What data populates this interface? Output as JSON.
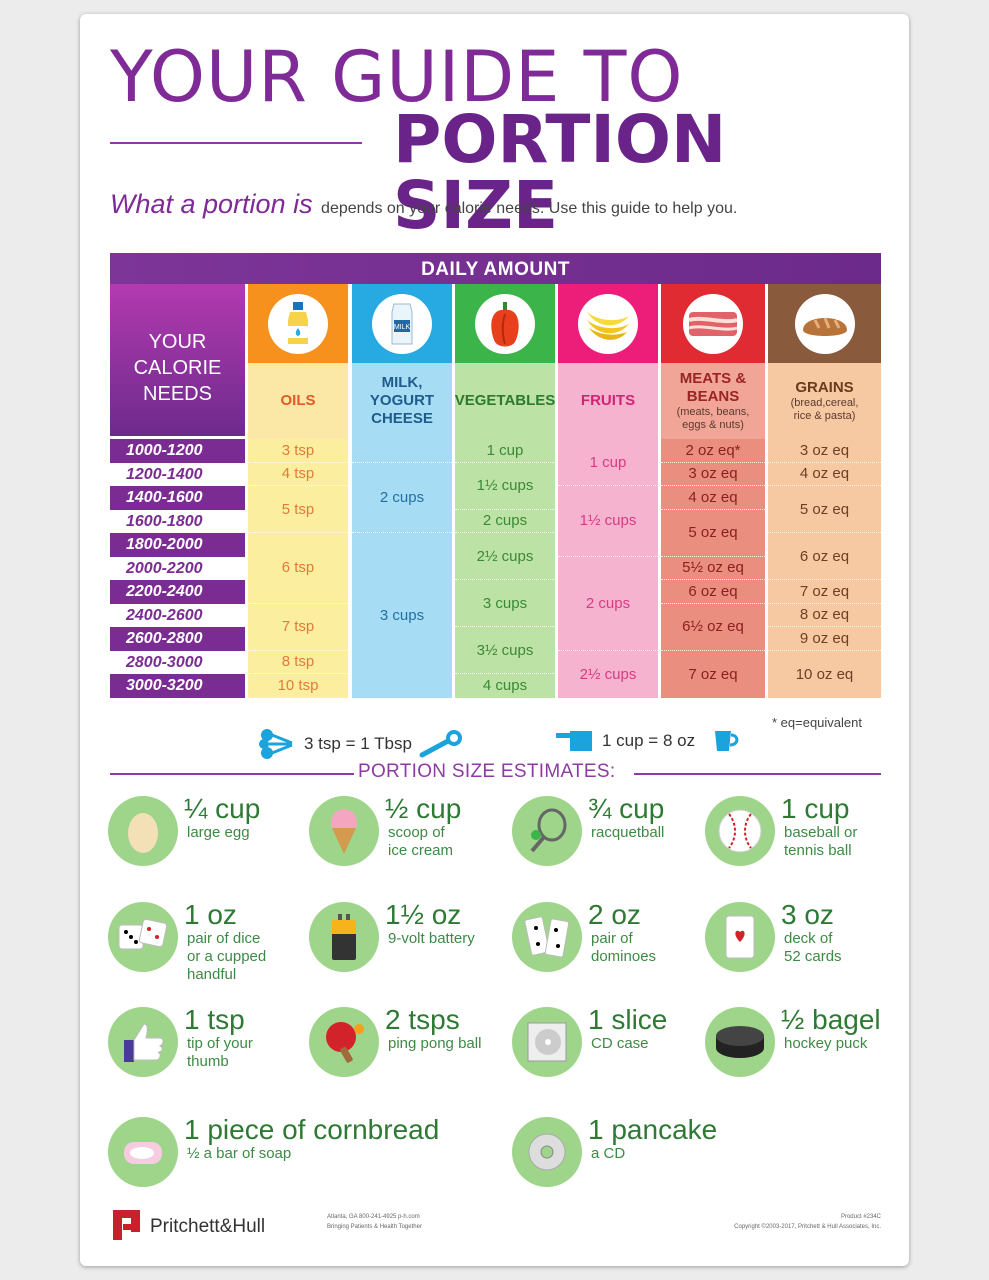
{
  "title": {
    "line1": "YOUR GUIDE TO",
    "line2": "PORTION SIZE"
  },
  "subtitle": {
    "lead": "What a portion is",
    "rest": "depends on your calorie needs. Use this guide to help you."
  },
  "table": {
    "banner": "DAILY AMOUNT",
    "needs_header": "YOUR\nCALORIE\nNEEDS",
    "ranges": [
      "1000-1200",
      "1200-1400",
      "1400-1600",
      "1600-1800",
      "1800-2000",
      "2000-2200",
      "2200-2400",
      "2400-2600",
      "2600-2800",
      "2800-3000",
      "3000-3200"
    ],
    "columns": [
      {
        "icon": "oil-bottle-icon",
        "header": "OILS",
        "sub": "",
        "icon_bg": "#f6911e",
        "header_bg": "#fbe7a6",
        "body_bg": "#fcee9f",
        "header_color": "#e25a27",
        "text_color": "#e47a3a",
        "cells": [
          {
            "t": "3 tsp",
            "s": 1
          },
          {
            "t": "4 tsp",
            "s": 1
          },
          {
            "t": "5 tsp",
            "s": 2
          },
          {
            "t": "6 tsp",
            "s": 3
          },
          {
            "t": "7 tsp",
            "s": 2
          },
          {
            "t": "8 tsp",
            "s": 1
          },
          {
            "t": "10 tsp",
            "s": 1
          }
        ]
      },
      {
        "icon": "milk-carton-icon",
        "header": "MILK,\nYOGURT\nCHEESE",
        "sub": "",
        "icon_bg": "#27a9e1",
        "header_bg": "#a7dcf5",
        "body_bg": "#a7dcf5",
        "header_color": "#1e5c8c",
        "text_color": "#2470a6",
        "cells": [
          {
            "t": "",
            "s": 1
          },
          {
            "t": "2 cups",
            "s": 3
          },
          {
            "t": "3 cups",
            "s": 7
          }
        ]
      },
      {
        "icon": "bell-pepper-icon",
        "header": "VEGETABLES",
        "sub": "",
        "icon_bg": "#3bb54a",
        "header_bg": "#bde2a6",
        "body_bg": "#bde2a6",
        "header_color": "#2d7a2d",
        "text_color": "#3a8a35",
        "cells": [
          {
            "t": "1 cup",
            "s": 1
          },
          {
            "t": "1½ cups",
            "s": 2
          },
          {
            "t": "2 cups",
            "s": 1
          },
          {
            "t": "2½ cups",
            "s": 2
          },
          {
            "t": "3 cups",
            "s": 2
          },
          {
            "t": "3½ cups",
            "s": 2
          },
          {
            "t": "4 cups",
            "s": 1
          }
        ]
      },
      {
        "icon": "bananas-icon",
        "header": "FRUITS",
        "sub": "",
        "icon_bg": "#ec1e79",
        "header_bg": "#f5b3cf",
        "body_bg": "#f5b3cf",
        "header_color": "#d22472",
        "text_color": "#d63c83",
        "cells": [
          {
            "t": "1 cup",
            "s": 2
          },
          {
            "t": "1½ cups",
            "s": 3
          },
          {
            "t": "2 cups",
            "s": 4
          },
          {
            "t": "2½ cups",
            "s": 2
          }
        ]
      },
      {
        "icon": "bacon-icon",
        "header": "MEATS &\nBEANS",
        "sub": "(meats, beans,\neggs & nuts)",
        "icon_bg": "#e12b32",
        "header_bg": "#f0a596",
        "body_bg": "#ea8e7f",
        "header_color": "#9b2424",
        "text_color": "#8c2020",
        "cells": [
          {
            "t": "2 oz eq*",
            "s": 1
          },
          {
            "t": "3 oz eq",
            "s": 1
          },
          {
            "t": "4 oz eq",
            "s": 1
          },
          {
            "t": "5 oz eq",
            "s": 2
          },
          {
            "t": "5½ oz eq",
            "s": 1
          },
          {
            "t": "6 oz eq",
            "s": 1
          },
          {
            "t": "6½ oz eq",
            "s": 2
          },
          {
            "t": "7 oz eq",
            "s": 2
          }
        ]
      },
      {
        "icon": "bread-loaf-icon",
        "header": "GRAINS",
        "sub": "(bread,cereal,\nrice & pasta)",
        "icon_bg": "#8a5a3c",
        "header_bg": "#f7c9a2",
        "body_bg": "#f7c9a2",
        "header_color": "#6b3b1c",
        "text_color": "#6d4025",
        "cells": [
          {
            "t": "3 oz eq",
            "s": 1
          },
          {
            "t": "4 oz eq",
            "s": 1
          },
          {
            "t": "5 oz eq",
            "s": 2
          },
          {
            "t": "6 oz eq",
            "s": 2
          },
          {
            "t": "7 oz eq",
            "s": 1
          },
          {
            "t": "8 oz eq",
            "s": 1
          },
          {
            "t": "9 oz eq",
            "s": 1
          },
          {
            "t": "10 oz eq",
            "s": 2
          }
        ]
      }
    ],
    "note": "* eq=equivalent"
  },
  "conversions": {
    "spoon": "3 tsp = 1 Tbsp",
    "cup": "1 cup = 8 oz"
  },
  "estimates_title": "PORTION SIZE ESTIMATES:",
  "estimates": [
    {
      "amt": "¼ cup",
      "desc": "large egg",
      "icon": "egg-icon"
    },
    {
      "amt": "½ cup",
      "desc": "scoop of\nice cream",
      "icon": "ice-cream-icon"
    },
    {
      "amt": "¾ cup",
      "desc": "racquetball",
      "icon": "racquet-icon"
    },
    {
      "amt": "1 cup",
      "desc": "baseball or\ntennis ball",
      "icon": "baseball-icon"
    },
    {
      "amt": "1 oz",
      "desc": "pair of dice\nor a cupped\nhandful",
      "icon": "dice-icon"
    },
    {
      "amt": "1½ oz",
      "desc": "9-volt battery",
      "icon": "battery-icon"
    },
    {
      "amt": "2 oz",
      "desc": "pair of\ndominoes",
      "icon": "dominoes-icon"
    },
    {
      "amt": "3 oz",
      "desc": "deck of\n52 cards",
      "icon": "playing-cards-icon"
    },
    {
      "amt": "1 tsp",
      "desc": "tip of your\nthumb",
      "icon": "thumbs-up-icon"
    },
    {
      "amt": "2 tsps",
      "desc": "ping pong ball",
      "icon": "ping-pong-icon"
    },
    {
      "amt": "1 slice",
      "desc": "CD case",
      "icon": "cd-case-icon"
    },
    {
      "amt": "½ bagel",
      "desc": "hockey puck",
      "icon": "hockey-puck-icon"
    },
    {
      "amt": "1 piece of cornbread",
      "desc": "½ a bar of soap",
      "icon": "soap-icon"
    },
    {
      "amt": "1 pancake",
      "desc": "a CD",
      "icon": "cd-icon"
    }
  ],
  "footer": {
    "brand": "Pritchett&Hull",
    "address": "Atlanta, GA     800-241-4925     p-h.com",
    "tagline": "Bringing Patients & Health Together",
    "product": "Product #234C",
    "copyright": "Copyright ©2003-2017, Pritchett & Hull Associates, Inc."
  },
  "colors": {
    "purple": "#7f2a97",
    "green_circle": "#9fd58a",
    "green_text": "#2e7a35"
  }
}
